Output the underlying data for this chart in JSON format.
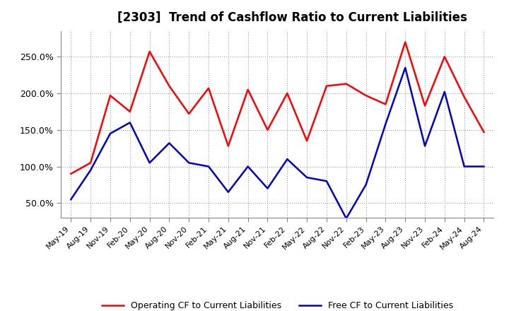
{
  "title": "[2303]  Trend of Cashflow Ratio to Current Liabilities",
  "x_labels": [
    "May-19",
    "Aug-19",
    "Nov-19",
    "Feb-20",
    "May-20",
    "Aug-20",
    "Nov-20",
    "Feb-21",
    "May-21",
    "Aug-21",
    "Nov-21",
    "Feb-22",
    "May-22",
    "Aug-22",
    "Nov-22",
    "Feb-23",
    "May-23",
    "Aug-23",
    "Nov-23",
    "Feb-24",
    "May-24",
    "Aug-24"
  ],
  "operating_cf": [
    0.9,
    1.05,
    1.97,
    1.75,
    2.57,
    2.1,
    1.72,
    2.07,
    1.28,
    2.05,
    1.5,
    2.0,
    1.35,
    2.1,
    2.13,
    1.97,
    1.85,
    2.7,
    1.83,
    2.5,
    1.95,
    1.47
  ],
  "free_cf": [
    0.55,
    0.95,
    1.45,
    1.6,
    1.05,
    1.32,
    1.05,
    1.0,
    0.65,
    1.0,
    0.7,
    1.1,
    0.85,
    0.8,
    0.29,
    0.75,
    1.58,
    2.35,
    1.28,
    2.02,
    1.0,
    1.0
  ],
  "operating_color": "#FF0000",
  "free_color": "#0000CC",
  "bg_color": "#FFFFFF",
  "plot_bg_color": "#FFFFFF",
  "grid_color": "#AAAAAA",
  "ylim": [
    0.3,
    2.85
  ],
  "yticks": [
    0.5,
    1.0,
    1.5,
    2.0,
    2.5
  ],
  "ytick_labels": [
    "50.0%",
    "100.0%",
    "150.0%",
    "200.0%",
    "250.0%"
  ],
  "legend_operating": "Operating CF to Current Liabilities",
  "legend_free": "Free CF to Current Liabilities",
  "line_width": 1.8
}
